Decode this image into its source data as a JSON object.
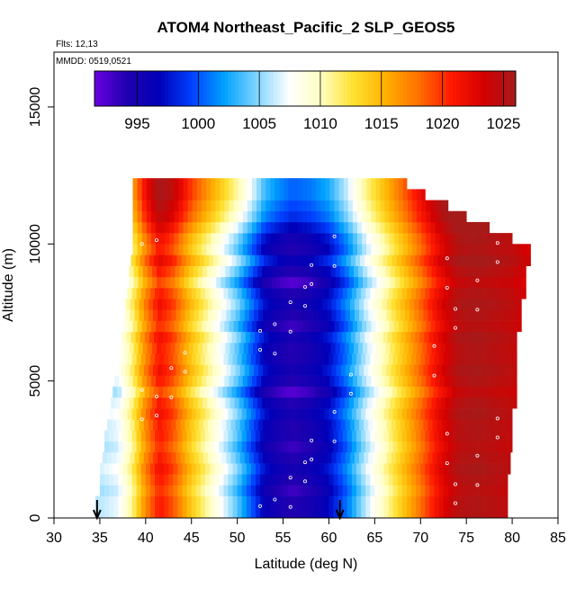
{
  "chart_data": {
    "type": "heatmap",
    "title": "ATOM4 Northeast_Pacific_2 SLP_GEOS5",
    "annotations": [
      "Flts: 12,13",
      "MMDD: 0519,0521"
    ],
    "xlabel": "Latitude (deg N)",
    "ylabel": "Altitude (m)",
    "xlim": [
      30,
      85
    ],
    "ylim": [
      0,
      17000
    ],
    "xticks": [
      30,
      35,
      40,
      45,
      50,
      55,
      60,
      65,
      70,
      75,
      80,
      85
    ],
    "yticks": [
      0,
      5000,
      10000,
      15000
    ],
    "colorbar": {
      "min": 991.5,
      "max": 1026,
      "ticks": [
        995,
        1000,
        1005,
        1010,
        1015,
        1020,
        1025
      ],
      "colors": [
        "#6a00e0",
        "#1f00b0",
        "#0000b8",
        "#0040ff",
        "#00a0ff",
        "#7fd4ff",
        "#ffffff",
        "#ffffc0",
        "#ffe030",
        "#ffb000",
        "#ff7000",
        "#ff1a00",
        "#d40000",
        "#a61a1a"
      ]
    },
    "markers": [
      {
        "latitude": 34.7,
        "type": "arrow"
      },
      {
        "latitude": 61.2,
        "type": "arrow"
      }
    ],
    "slp_profile": {
      "latitude": [
        35,
        37,
        38.5,
        40,
        41.5,
        43,
        45,
        46.5,
        48,
        50,
        52,
        53,
        54.5,
        56,
        58,
        60,
        62,
        64,
        66,
        68,
        70,
        72,
        74,
        76,
        80,
        82
      ],
      "slp_hPa": [
        1006,
        1007,
        1011,
        1017,
        1021,
        1019,
        1014,
        1011,
        1008,
        1004,
        999,
        996.5,
        995,
        994,
        995,
        997,
        1001,
        1006,
        1010,
        1014,
        1018,
        1022,
        1025,
        1025.5,
        1024.5,
        1023
      ]
    },
    "altitude_bands": [
      0,
      400,
      800,
      1200,
      1600,
      2000,
      2400,
      2800,
      3200,
      3600,
      4000,
      4400,
      4800,
      5200,
      5600,
      6000,
      6400,
      6800,
      7200,
      7600,
      8000,
      8400,
      8800,
      9200,
      9600,
      10000,
      10400,
      10800,
      11200,
      11600,
      12000
    ],
    "band_right_edge_lat": [
      79.5,
      79.5,
      79.5,
      79.5,
      79.8,
      79.8,
      80,
      80,
      80,
      80,
      80.5,
      80.5,
      80.5,
      80.5,
      80.5,
      80.5,
      80.5,
      81,
      81,
      81,
      81.5,
      81.5,
      81.5,
      82,
      82,
      80,
      77.5,
      75,
      73,
      70.5,
      68.5
    ],
    "band_left_edge_lat": [
      34.5,
      34.5,
      35,
      35,
      35,
      35.3,
      35.5,
      35.5,
      35.8,
      36,
      36.2,
      36.4,
      36.6,
      36.8,
      37,
      37.2,
      37.4,
      37.6,
      37.8,
      37.8,
      38,
      38.2,
      38.2,
      38.4,
      38.6,
      38.6,
      38.6,
      38.6,
      38.6,
      38.6,
      38.6
    ],
    "upper_band_offset_hPa": [
      0,
      0,
      -1,
      0,
      1,
      0,
      -1,
      0,
      0,
      1,
      0,
      -2,
      0,
      1,
      0,
      0,
      1,
      -1,
      0,
      1,
      0,
      -2,
      0,
      2,
      0,
      1,
      3,
      5,
      6,
      7,
      7
    ]
  }
}
